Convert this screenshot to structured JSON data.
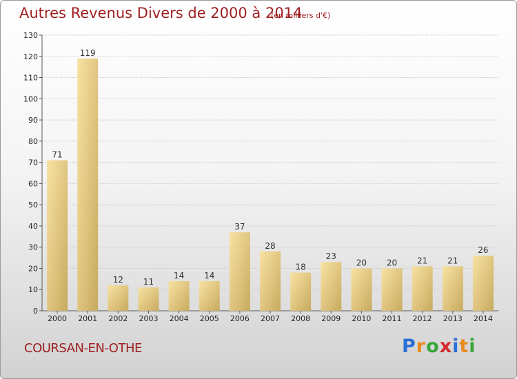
{
  "title": "Autres Revenus Divers de 2000 à 2014",
  "subtitle": "(en milliers d'€)",
  "town": "COURSAN-EN-OTHE",
  "logo": {
    "letters": [
      "P",
      "r",
      "o",
      "x",
      "i",
      "t",
      "i"
    ],
    "colors": [
      "#2b6fd6",
      "#e98a1c",
      "#3aa63a",
      "#d42a2a",
      "#2b6fd6",
      "#e98a1c",
      "#3aa63a"
    ]
  },
  "colors": {
    "title": "#9e2022",
    "bar_light": "#f7dd98",
    "bar_dark": "#c9ad63",
    "grid": "#cccccc"
  },
  "chart_data": {
    "type": "bar",
    "categories": [
      "2000",
      "2001",
      "2002",
      "2003",
      "2004",
      "2005",
      "2006",
      "2007",
      "2008",
      "2009",
      "2010",
      "2011",
      "2012",
      "2013",
      "2014"
    ],
    "values": [
      71,
      119,
      12,
      11,
      14,
      14,
      37,
      28,
      18,
      23,
      20,
      20,
      21,
      21,
      26
    ],
    "ylim": [
      0,
      130
    ],
    "yticks": [
      0,
      10,
      20,
      30,
      40,
      50,
      60,
      70,
      80,
      90,
      100,
      110,
      120,
      130
    ],
    "grid": true
  }
}
